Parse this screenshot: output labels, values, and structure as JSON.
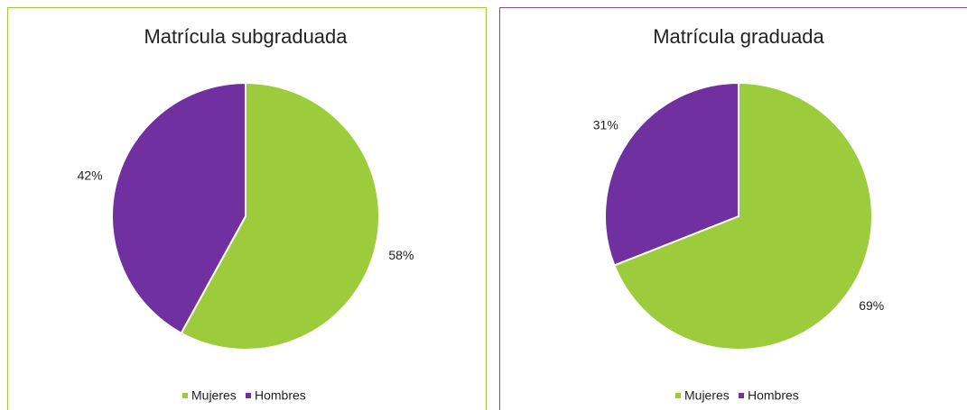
{
  "chart_data": [
    {
      "type": "pie",
      "title": "Matrícula subgraduada",
      "series": [
        {
          "name": "Mujeres",
          "color": "#9ccb3b",
          "values": [
            58
          ],
          "value_labels": [
            "58%"
          ]
        },
        {
          "name": "Hombres",
          "color": "#7030a0",
          "values": [
            42
          ],
          "value_labels": [
            "42%"
          ]
        }
      ],
      "legend": "bottom"
    },
    {
      "type": "pie",
      "title": "Matrícula graduada",
      "series": [
        {
          "name": "Mujeres",
          "color": "#9ccb3b",
          "values": [
            69
          ],
          "value_labels": [
            "69%"
          ]
        },
        {
          "name": "Hombres",
          "color": "#7030a0",
          "values": [
            31
          ],
          "value_labels": [
            "31%"
          ]
        }
      ],
      "legend": "bottom"
    }
  ]
}
